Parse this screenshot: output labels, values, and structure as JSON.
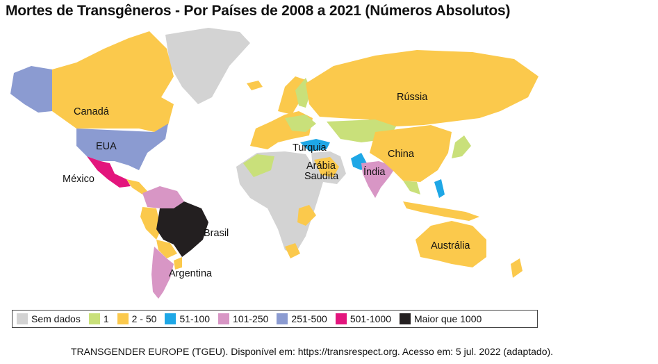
{
  "title": "Mortes de Transgêneros - Por Países de 2008 a 2021 (Números Absolutos)",
  "colors": {
    "no_data": "#d3d3d3",
    "c1": "#c9e07a",
    "c2_50": "#fbc94c",
    "c51_100": "#1ea7e6",
    "c101_250": "#d896c5",
    "c251_500": "#8b9bd1",
    "c501_1000": "#e3157d",
    "c1000_plus": "#231f20"
  },
  "labels": {
    "canada": "Canadá",
    "eua": "EUA",
    "mexico": "México",
    "brasil": "Brasil",
    "argentina": "Argentina",
    "russia": "Rússia",
    "china": "China",
    "turquia": "Turquia",
    "arabia_1": "Arábia",
    "arabia_2": "Saudita",
    "india": "Índia",
    "australia": "Austrália"
  },
  "legend": [
    {
      "label": "Sem dados",
      "color": "#d3d3d3"
    },
    {
      "label": "1",
      "color": "#c9e07a"
    },
    {
      "label": "2 - 50",
      "color": "#fbc94c"
    },
    {
      "label": "51-100",
      "color": "#1ea7e6"
    },
    {
      "label": "101-250",
      "color": "#d896c5"
    },
    {
      "label": "251-500",
      "color": "#8b9bd1"
    },
    {
      "label": "501-1000",
      "color": "#e3157d"
    },
    {
      "label": "Maior que 1000",
      "color": "#231f20"
    }
  ],
  "source": "TRANSGENDER EUROPE (TGEU). Disponível em: https://transrespect.org. Acesso em: 5 jul. 2022 (adaptado)."
}
